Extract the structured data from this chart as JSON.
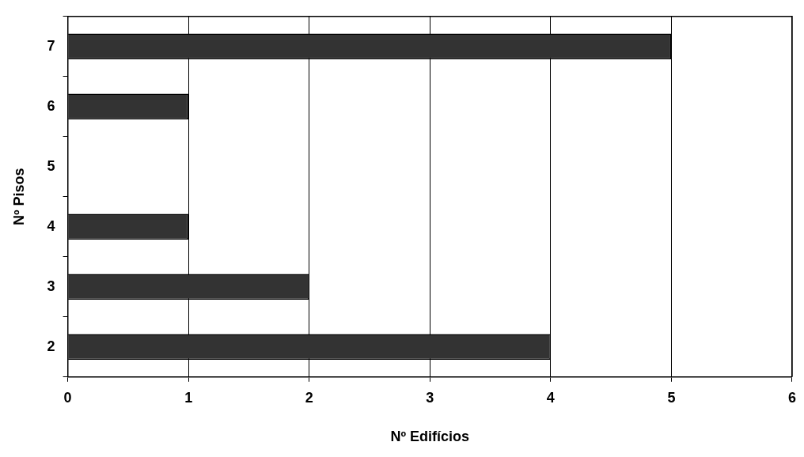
{
  "chart_data": {
    "type": "bar",
    "orientation": "horizontal",
    "xlabel": "Nº Edifícios",
    "ylabel": "Nº Pisos",
    "categories": [
      "7",
      "6",
      "5",
      "4",
      "3",
      "2"
    ],
    "values": [
      5,
      1,
      0,
      1,
      2,
      4
    ],
    "color": "#333333",
    "xlim": [
      0,
      6
    ],
    "xticks": [
      0,
      1,
      2,
      3,
      4,
      5,
      6
    ],
    "grid": "x",
    "legend": false
  }
}
